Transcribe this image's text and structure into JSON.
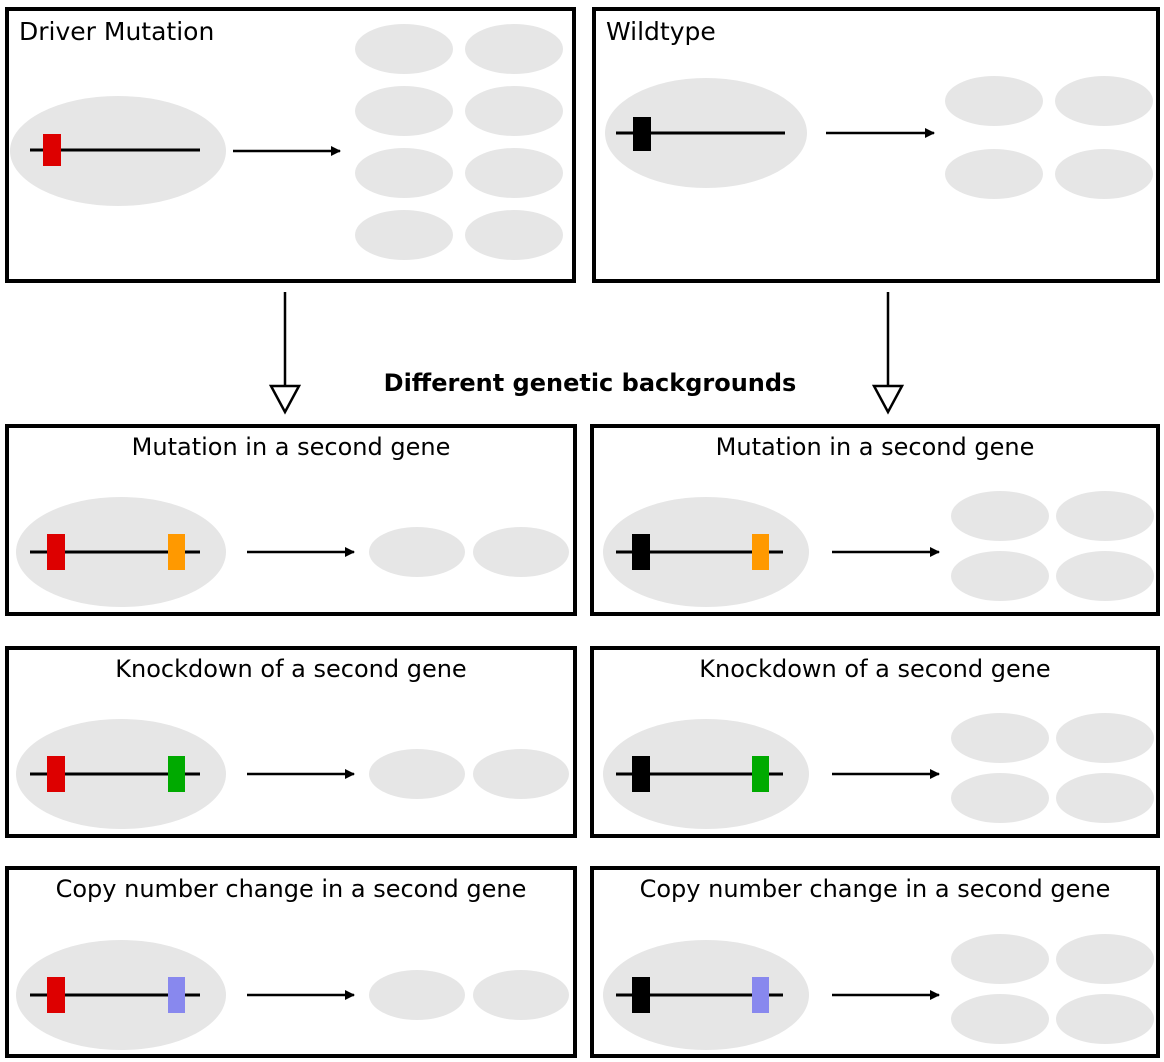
{
  "top": {
    "driver": {
      "title": "Driver Mutation",
      "daughter_cells": 8
    },
    "wildtype": {
      "title": "Wildtype",
      "daughter_cells": 4
    }
  },
  "middle_label": "Different genetic backgrounds",
  "rows": [
    {
      "title": "Mutation in a second gene",
      "second_gene_color": "#FF9900",
      "left": {
        "title": "Mutation in a second gene",
        "daughter_cells": 2
      },
      "right": {
        "title": "Mutation in a second gene",
        "daughter_cells": 4
      }
    },
    {
      "title": "Knockdown of a second gene",
      "second_gene_color": "#00AA00",
      "left": {
        "title": "Knockdown of a second gene",
        "daughter_cells": 2
      },
      "right": {
        "title": "Knockdown of a second gene",
        "daughter_cells": 4
      }
    },
    {
      "title": "Copy number change in a second gene",
      "second_gene_color": "#8888EE",
      "left": {
        "title": "Copy number change in a second gene",
        "daughter_cells": 2
      },
      "right": {
        "title": "Copy number change in a second gene",
        "daughter_cells": 4
      }
    }
  ],
  "colors": {
    "driver_mutation": "#DD0000",
    "wildtype_allele": "#000000",
    "cell_fill": "#E6E6E6",
    "border": "#000000"
  }
}
